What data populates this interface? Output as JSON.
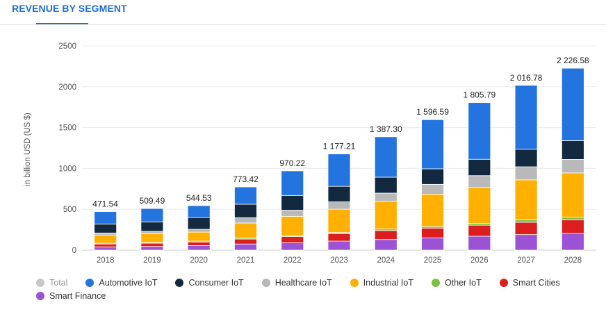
{
  "header": {
    "tab_label": "REVENUE BY SEGMENT"
  },
  "chart_data": {
    "type": "bar",
    "stacked": true,
    "ylabel": "in billion USD (US $)",
    "ylim": [
      0,
      2500
    ],
    "yticks": [
      "0",
      "500",
      "1000",
      "1500",
      "2000",
      "2500"
    ],
    "categories": [
      "2018",
      "2019",
      "2020",
      "2021",
      "2022",
      "2023",
      "2024",
      "2025",
      "2026",
      "2027",
      "2028"
    ],
    "totals": [
      471.54,
      509.49,
      544.53,
      773.42,
      970.22,
      1177.21,
      1387.3,
      1596.59,
      1805.79,
      2016.78,
      2226.58
    ],
    "total_labels": [
      "471.54",
      "509.49",
      "544.53",
      "773.42",
      "970.22",
      "1 177.21",
      "1 387.30",
      "1 596.59",
      "1 805.79",
      "2 016.78",
      "2 226.58"
    ],
    "series": [
      {
        "name": "Smart Finance",
        "color": "#9b52d4",
        "values": [
          40,
          45,
          55,
          75,
          90,
          110,
          130,
          150,
          170,
          190,
          205
        ]
      },
      {
        "name": "Smart Cities",
        "color": "#dc1e1e",
        "values": [
          35,
          40,
          45,
          60,
          75,
          90,
          110,
          120,
          135,
          150,
          165
        ]
      },
      {
        "name": "Other IoT",
        "color": "#7ac143",
        "values": [
          10,
          10,
          10,
          12,
          14,
          16,
          18,
          20,
          22,
          30,
          35
        ]
      },
      {
        "name": "Industrial IoT",
        "color": "#ffb000",
        "values": [
          100,
          105,
          110,
          185,
          235,
          285,
          340,
          395,
          440,
          490,
          540
        ]
      },
      {
        "name": "Healthcare IoT",
        "color": "#b9b9b9",
        "values": [
          25,
          30,
          35,
          65,
          75,
          90,
          100,
          120,
          145,
          160,
          165
        ]
      },
      {
        "name": "Consumer IoT",
        "color": "#13293f",
        "values": [
          110,
          115,
          145,
          165,
          180,
          190,
          195,
          190,
          200,
          215,
          230
        ]
      },
      {
        "name": "Automotive IoT",
        "color": "#2374de",
        "values": [
          151.54,
          164.49,
          144.53,
          211.42,
          301.22,
          396.21,
          494.3,
          601.59,
          693.79,
          781.78,
          886.58
        ]
      }
    ]
  },
  "legend": [
    {
      "label": "Total",
      "color": "#c8c8c8",
      "active": false
    },
    {
      "label": "Automotive IoT",
      "color": "#2374de",
      "active": true
    },
    {
      "label": "Consumer IoT",
      "color": "#13293f",
      "active": true
    },
    {
      "label": "Healthcare IoT",
      "color": "#b9b9b9",
      "active": true
    },
    {
      "label": "Industrial IoT",
      "color": "#ffb000",
      "active": true
    },
    {
      "label": "Other IoT",
      "color": "#7ac143",
      "active": true
    },
    {
      "label": "Smart Cities",
      "color": "#dc1e1e",
      "active": true
    },
    {
      "label": "Smart Finance",
      "color": "#9b52d4",
      "active": true
    }
  ]
}
